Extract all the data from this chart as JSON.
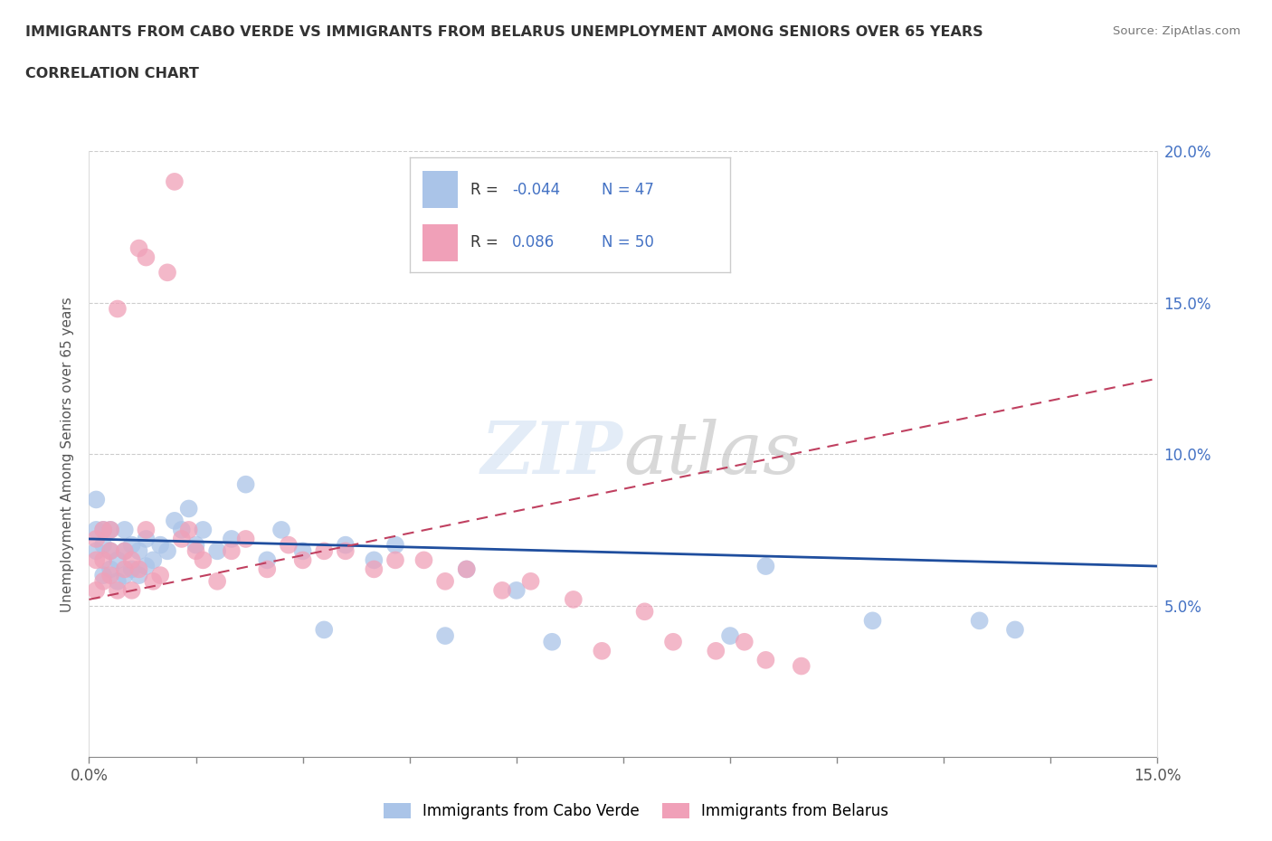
{
  "title_line1": "IMMIGRANTS FROM CABO VERDE VS IMMIGRANTS FROM BELARUS UNEMPLOYMENT AMONG SENIORS OVER 65 YEARS",
  "title_line2": "CORRELATION CHART",
  "source": "Source: ZipAtlas.com",
  "ylabel": "Unemployment Among Seniors over 65 years",
  "xlim": [
    0,
    0.15
  ],
  "ylim": [
    0,
    0.2
  ],
  "xticks": [
    0.0,
    0.015,
    0.03,
    0.045,
    0.06,
    0.075,
    0.09,
    0.105,
    0.12,
    0.135,
    0.15
  ],
  "xticklabels": [
    "0.0%",
    "",
    "",
    "",
    "",
    "",
    "",
    "",
    "",
    "",
    "15.0%"
  ],
  "yticks": [
    0.0,
    0.05,
    0.1,
    0.15,
    0.2
  ],
  "yticklabels_right": [
    "",
    "5.0%",
    "10.0%",
    "15.0%",
    "20.0%"
  ],
  "r_cabo": -0.044,
  "n_cabo": 47,
  "r_belarus": 0.086,
  "n_belarus": 50,
  "legend_label_cabo": "Immigrants from Cabo Verde",
  "legend_label_belarus": "Immigrants from Belarus",
  "color_cabo": "#aac4e8",
  "color_cabo_line": "#1f4e9e",
  "color_belarus": "#f0a0b8",
  "color_belarus_line": "#c04060",
  "color_r_value": "#4472c4",
  "cabo_x": [
    0.001,
    0.001,
    0.001,
    0.002,
    0.002,
    0.002,
    0.003,
    0.003,
    0.003,
    0.004,
    0.004,
    0.005,
    0.005,
    0.005,
    0.006,
    0.006,
    0.007,
    0.007,
    0.008,
    0.008,
    0.009,
    0.01,
    0.011,
    0.012,
    0.013,
    0.014,
    0.015,
    0.016,
    0.018,
    0.02,
    0.022,
    0.025,
    0.027,
    0.03,
    0.033,
    0.036,
    0.04,
    0.043,
    0.05,
    0.053,
    0.06,
    0.065,
    0.09,
    0.095,
    0.11,
    0.125,
    0.13
  ],
  "cabo_y": [
    0.068,
    0.075,
    0.085,
    0.06,
    0.07,
    0.075,
    0.062,
    0.068,
    0.075,
    0.058,
    0.065,
    0.06,
    0.068,
    0.075,
    0.062,
    0.07,
    0.06,
    0.068,
    0.063,
    0.072,
    0.065,
    0.07,
    0.068,
    0.078,
    0.075,
    0.082,
    0.07,
    0.075,
    0.068,
    0.072,
    0.09,
    0.065,
    0.075,
    0.068,
    0.042,
    0.07,
    0.065,
    0.07,
    0.04,
    0.062,
    0.055,
    0.038,
    0.04,
    0.063,
    0.045,
    0.045,
    0.042
  ],
  "belarus_x": [
    0.001,
    0.001,
    0.001,
    0.002,
    0.002,
    0.002,
    0.003,
    0.003,
    0.003,
    0.004,
    0.004,
    0.005,
    0.005,
    0.006,
    0.006,
    0.007,
    0.007,
    0.008,
    0.008,
    0.009,
    0.01,
    0.011,
    0.012,
    0.013,
    0.014,
    0.015,
    0.016,
    0.018,
    0.02,
    0.022,
    0.025,
    0.028,
    0.03,
    0.033,
    0.036,
    0.04,
    0.043,
    0.047,
    0.05,
    0.053,
    0.058,
    0.062,
    0.068,
    0.072,
    0.078,
    0.082,
    0.088,
    0.092,
    0.095,
    0.1
  ],
  "belarus_y": [
    0.055,
    0.065,
    0.072,
    0.058,
    0.065,
    0.075,
    0.06,
    0.068,
    0.075,
    0.055,
    0.148,
    0.062,
    0.068,
    0.055,
    0.065,
    0.062,
    0.168,
    0.075,
    0.165,
    0.058,
    0.06,
    0.16,
    0.19,
    0.072,
    0.075,
    0.068,
    0.065,
    0.058,
    0.068,
    0.072,
    0.062,
    0.07,
    0.065,
    0.068,
    0.068,
    0.062,
    0.065,
    0.065,
    0.058,
    0.062,
    0.055,
    0.058,
    0.052,
    0.035,
    0.048,
    0.038,
    0.035,
    0.038,
    0.032,
    0.03
  ]
}
